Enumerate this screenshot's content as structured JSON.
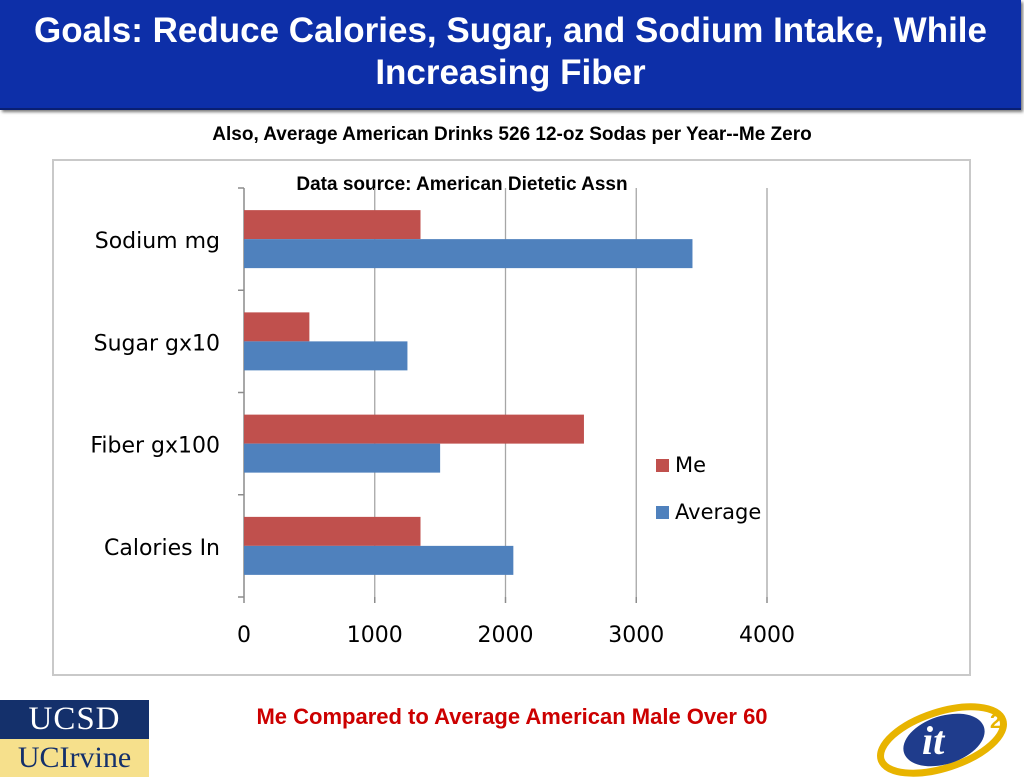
{
  "header": {
    "title": "Goals: Reduce Calories, Sugar, and Sodium Intake, While Increasing Fiber"
  },
  "subtitle": "Also, Average American Drinks 526 12-oz Sodas per Year--Me Zero",
  "chart_data": {
    "type": "bar",
    "orientation": "horizontal",
    "title": "Data source: American Dietetic Assn",
    "categories": [
      "Sodium mg",
      "Sugar gx10",
      "Fiber gx100",
      "Calories In"
    ],
    "series": [
      {
        "name": "Me",
        "color": "#c0504d",
        "values": [
          1350,
          500,
          2600,
          1350
        ]
      },
      {
        "name": "Average",
        "color": "#4f81bd",
        "values": [
          3430,
          1250,
          1500,
          2060
        ]
      }
    ],
    "xlim": [
      0,
      4000
    ],
    "xticks": [
      "0",
      "1000",
      "2000",
      "3000",
      "4000"
    ],
    "grid": true,
    "legend_position": "right"
  },
  "caption": "Me Compared to Average American Male Over 60",
  "logos": {
    "ucsd": "UCSD",
    "ucirvine": "UCIrvine",
    "it2": "it2"
  }
}
